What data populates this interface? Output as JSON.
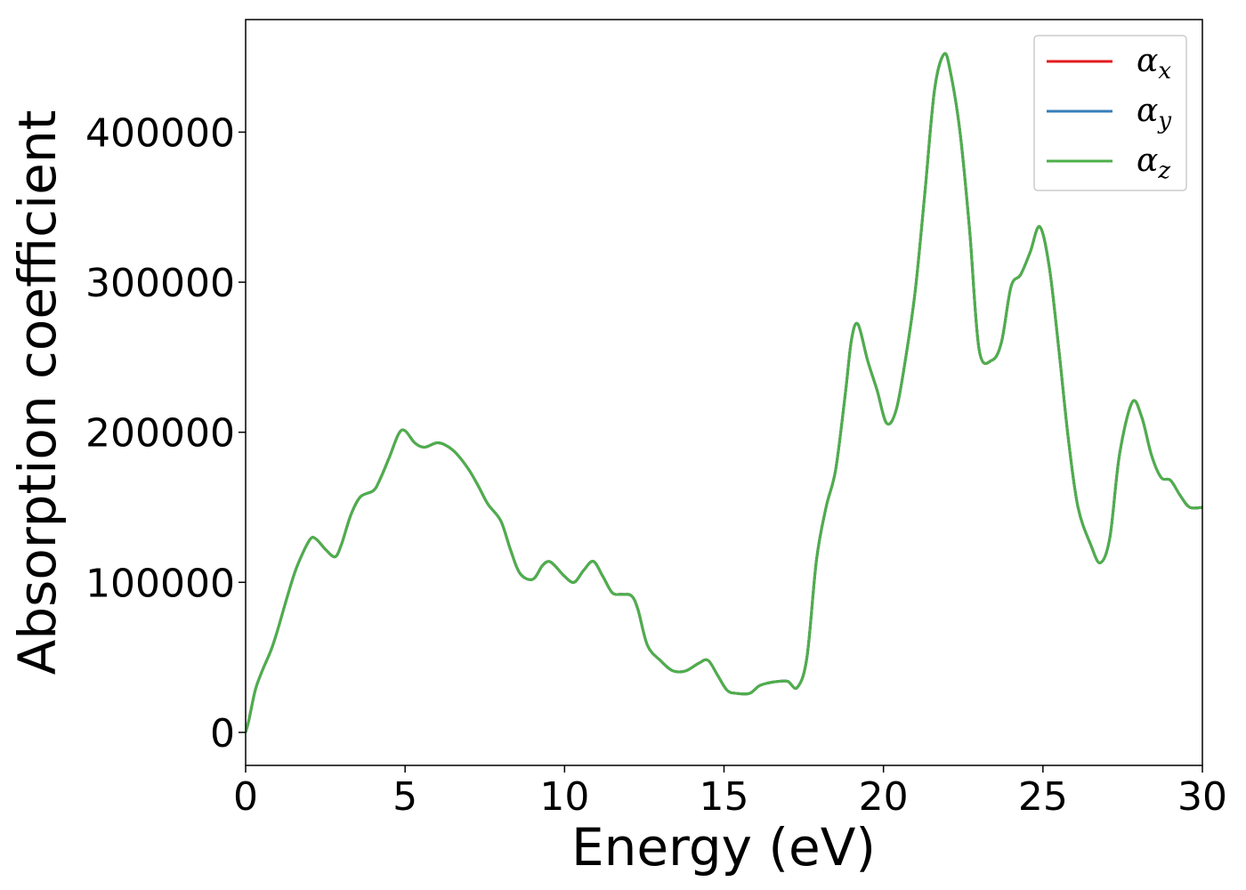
{
  "chart_data": {
    "type": "line",
    "xlabel": "Energy (eV)",
    "ylabel": "Absorption coefficient",
    "xlim": [
      0,
      30
    ],
    "ylim": [
      -22000,
      475000
    ],
    "xticks": [
      0,
      5,
      10,
      15,
      20,
      25,
      30
    ],
    "xtick_labels": [
      "0",
      "5",
      "10",
      "15",
      "20",
      "25",
      "30"
    ],
    "yticks": [
      0,
      100000,
      200000,
      300000,
      400000
    ],
    "ytick_labels": [
      "0",
      "100000",
      "200000",
      "300000",
      "400000"
    ],
    "grid": false,
    "legend": "top-right",
    "series": [
      {
        "name": "α_x",
        "label_symbol": "α",
        "label_sub": "x",
        "color": "#e41a1c",
        "x": [
          0,
          0.1,
          0.3,
          0.5,
          0.8,
          1.0,
          1.3,
          1.6,
          2.0,
          2.2,
          2.5,
          2.8,
          3.0,
          3.3,
          3.6,
          4.0,
          4.2,
          4.5,
          4.8,
          5.0,
          5.3,
          5.6,
          6.0,
          6.3,
          6.6,
          7.0,
          7.3,
          7.6,
          8.0,
          8.3,
          8.6,
          9.0,
          9.3,
          9.5,
          9.7,
          10.0,
          10.3,
          10.6,
          10.9,
          11.2,
          11.5,
          11.8,
          12.1,
          12.3,
          12.6,
          13.0,
          13.4,
          13.8,
          14.2,
          14.5,
          14.8,
          15.1,
          15.4,
          15.8,
          16.1,
          16.4,
          16.7,
          17.0,
          17.3,
          17.6,
          17.9,
          18.2,
          18.5,
          18.8,
          19.0,
          19.2,
          19.5,
          19.8,
          20.1,
          20.4,
          20.7,
          21.0,
          21.3,
          21.6,
          21.9,
          22.1,
          22.4,
          22.7,
          23.0,
          23.4,
          23.7,
          24.0,
          24.3,
          24.6,
          24.9,
          25.2,
          25.5,
          25.8,
          26.1,
          26.5,
          26.8,
          27.1,
          27.4,
          27.8,
          28.1,
          28.4,
          28.7,
          29.0,
          29.3,
          29.6,
          30.0
        ],
        "values": [
          0,
          8000,
          28000,
          40000,
          55000,
          68000,
          90000,
          110000,
          128000,
          129000,
          122000,
          117000,
          125000,
          145000,
          157000,
          161000,
          168000,
          183000,
          199000,
          201000,
          193000,
          190000,
          193000,
          191000,
          186000,
          175000,
          164000,
          152000,
          141000,
          122000,
          106000,
          102000,
          111000,
          114000,
          111000,
          104000,
          100000,
          108000,
          114000,
          104000,
          93000,
          92000,
          91000,
          82000,
          58000,
          48000,
          41000,
          41000,
          46000,
          48000,
          38000,
          28000,
          26000,
          26000,
          31000,
          33000,
          34000,
          34000,
          30000,
          50000,
          115000,
          150000,
          175000,
          225000,
          262000,
          272000,
          248000,
          228000,
          206000,
          215000,
          250000,
          295000,
          360000,
          428000,
          452000,
          440000,
          400000,
          335000,
          255000,
          248000,
          260000,
          297000,
          305000,
          320000,
          337000,
          310000,
          255000,
          195000,
          150000,
          125000,
          113000,
          130000,
          185000,
          220000,
          210000,
          185000,
          170000,
          168000,
          158000,
          150000,
          150000
        ]
      },
      {
        "name": "α_y",
        "label_symbol": "α",
        "label_sub": "y",
        "color": "#377eb8",
        "x": [
          0,
          0.1,
          0.3,
          0.5,
          0.8,
          1.0,
          1.3,
          1.6,
          2.0,
          2.2,
          2.5,
          2.8,
          3.0,
          3.3,
          3.6,
          4.0,
          4.2,
          4.5,
          4.8,
          5.0,
          5.3,
          5.6,
          6.0,
          6.3,
          6.6,
          7.0,
          7.3,
          7.6,
          8.0,
          8.3,
          8.6,
          9.0,
          9.3,
          9.5,
          9.7,
          10.0,
          10.3,
          10.6,
          10.9,
          11.2,
          11.5,
          11.8,
          12.1,
          12.3,
          12.6,
          13.0,
          13.4,
          13.8,
          14.2,
          14.5,
          14.8,
          15.1,
          15.4,
          15.8,
          16.1,
          16.4,
          16.7,
          17.0,
          17.3,
          17.6,
          17.9,
          18.2,
          18.5,
          18.8,
          19.0,
          19.2,
          19.5,
          19.8,
          20.1,
          20.4,
          20.7,
          21.0,
          21.3,
          21.6,
          21.9,
          22.1,
          22.4,
          22.7,
          23.0,
          23.4,
          23.7,
          24.0,
          24.3,
          24.6,
          24.9,
          25.2,
          25.5,
          25.8,
          26.1,
          26.5,
          26.8,
          27.1,
          27.4,
          27.8,
          28.1,
          28.4,
          28.7,
          29.0,
          29.3,
          29.6,
          30.0
        ],
        "values": [
          0,
          8000,
          28000,
          40000,
          55000,
          68000,
          90000,
          110000,
          128000,
          129000,
          122000,
          117000,
          125000,
          145000,
          157000,
          161000,
          168000,
          183000,
          199000,
          201000,
          193000,
          190000,
          193000,
          191000,
          186000,
          175000,
          164000,
          152000,
          141000,
          122000,
          106000,
          102000,
          111000,
          114000,
          111000,
          104000,
          100000,
          108000,
          114000,
          104000,
          93000,
          92000,
          91000,
          82000,
          58000,
          48000,
          41000,
          41000,
          46000,
          48000,
          38000,
          28000,
          26000,
          26000,
          31000,
          33000,
          34000,
          34000,
          30000,
          50000,
          115000,
          150000,
          175000,
          225000,
          262000,
          272000,
          248000,
          228000,
          206000,
          215000,
          250000,
          295000,
          360000,
          428000,
          452000,
          440000,
          400000,
          335000,
          255000,
          248000,
          260000,
          297000,
          305000,
          320000,
          337000,
          310000,
          255000,
          195000,
          150000,
          125000,
          113000,
          130000,
          185000,
          220000,
          210000,
          185000,
          170000,
          168000,
          158000,
          150000,
          150000
        ]
      },
      {
        "name": "α_z",
        "label_symbol": "α",
        "label_sub": "z",
        "color": "#4daf4a",
        "x": [
          0,
          0.1,
          0.3,
          0.5,
          0.8,
          1.0,
          1.3,
          1.6,
          2.0,
          2.2,
          2.5,
          2.8,
          3.0,
          3.3,
          3.6,
          4.0,
          4.2,
          4.5,
          4.8,
          5.0,
          5.3,
          5.6,
          6.0,
          6.3,
          6.6,
          7.0,
          7.3,
          7.6,
          8.0,
          8.3,
          8.6,
          9.0,
          9.3,
          9.5,
          9.7,
          10.0,
          10.3,
          10.6,
          10.9,
          11.2,
          11.5,
          11.8,
          12.1,
          12.3,
          12.6,
          13.0,
          13.4,
          13.8,
          14.2,
          14.5,
          14.8,
          15.1,
          15.4,
          15.8,
          16.1,
          16.4,
          16.7,
          17.0,
          17.3,
          17.6,
          17.9,
          18.2,
          18.5,
          18.8,
          19.0,
          19.2,
          19.5,
          19.8,
          20.1,
          20.4,
          20.7,
          21.0,
          21.3,
          21.6,
          21.9,
          22.1,
          22.4,
          22.7,
          23.0,
          23.4,
          23.7,
          24.0,
          24.3,
          24.6,
          24.9,
          25.2,
          25.5,
          25.8,
          26.1,
          26.5,
          26.8,
          27.1,
          27.4,
          27.8,
          28.1,
          28.4,
          28.7,
          29.0,
          29.3,
          29.6,
          30.0
        ],
        "values": [
          0,
          8000,
          28000,
          40000,
          55000,
          68000,
          90000,
          110000,
          128000,
          129000,
          122000,
          117000,
          125000,
          145000,
          157000,
          161000,
          168000,
          183000,
          199000,
          201000,
          193000,
          190000,
          193000,
          191000,
          186000,
          175000,
          164000,
          152000,
          141000,
          122000,
          106000,
          102000,
          111000,
          114000,
          111000,
          104000,
          100000,
          108000,
          114000,
          104000,
          93000,
          92000,
          91000,
          82000,
          58000,
          48000,
          41000,
          41000,
          46000,
          48000,
          38000,
          28000,
          26000,
          26000,
          31000,
          33000,
          34000,
          34000,
          30000,
          50000,
          115000,
          150000,
          175000,
          225000,
          262000,
          272000,
          248000,
          228000,
          206000,
          215000,
          250000,
          295000,
          360000,
          428000,
          452000,
          440000,
          400000,
          335000,
          255000,
          248000,
          260000,
          297000,
          305000,
          320000,
          337000,
          310000,
          255000,
          195000,
          150000,
          125000,
          113000,
          130000,
          185000,
          220000,
          210000,
          185000,
          170000,
          168000,
          158000,
          150000,
          150000
        ]
      }
    ]
  }
}
